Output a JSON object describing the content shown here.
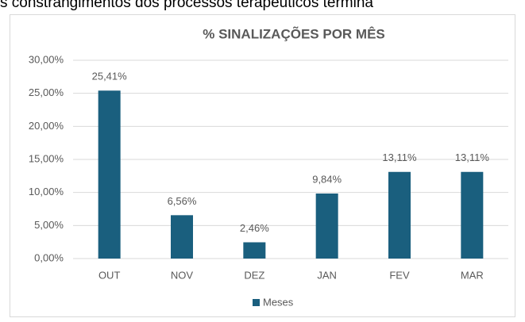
{
  "header_text": "s constrangimentos dos processos terapêuticos termina",
  "chart_data": {
    "type": "bar",
    "title": "% SINALIZAÇÕES POR MÊS",
    "categories": [
      "OUT",
      "NOV",
      "DEZ",
      "JAN",
      "FEV",
      "MAR"
    ],
    "series": [
      {
        "name": "Meses",
        "color": "#1a5f7e",
        "values": [
          25.41,
          6.56,
          2.46,
          9.84,
          13.11,
          13.11
        ],
        "value_labels": [
          "25,41%",
          "6,56%",
          "2,46%",
          "9,84%",
          "13,11%",
          "13,11%"
        ]
      }
    ],
    "ylim": [
      0,
      30
    ],
    "yticks": [
      {
        "value": 0,
        "label": "0,00%"
      },
      {
        "value": 5,
        "label": "5,00%"
      },
      {
        "value": 10,
        "label": "10,00%"
      },
      {
        "value": 15,
        "label": "15,00%"
      },
      {
        "value": 20,
        "label": "20,00%"
      },
      {
        "value": 25,
        "label": "25,00%"
      },
      {
        "value": 30,
        "label": "30,00%"
      }
    ],
    "grid": true,
    "legend": "bottom"
  }
}
